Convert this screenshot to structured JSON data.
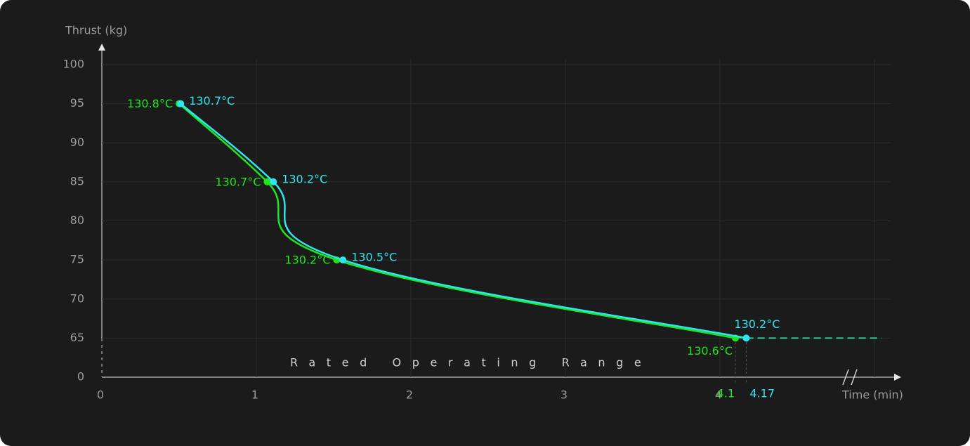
{
  "chart_data": {
    "type": "line",
    "title": "Thrust  (kg)",
    "x_label": "Time  (min)",
    "annotation": "Rated Operating Range",
    "xlim": [
      0,
      5
    ],
    "xticks": [
      0,
      1,
      2,
      3,
      4
    ],
    "ylim": [
      0,
      100
    ],
    "yticks": [
      0,
      65,
      70,
      75,
      80,
      85,
      90,
      95,
      100
    ],
    "grid": true,
    "series": [
      {
        "color": "#1fe51c",
        "x": [
          0.5,
          1.07,
          1.52,
          4.1
        ],
        "values": [
          95,
          85,
          75,
          65
        ],
        "labels": [
          "130.8°C",
          "130.7°C",
          "130.2°C",
          "130.6°C"
        ]
      },
      {
        "color": "#2ee6ee",
        "x": [
          0.51,
          1.11,
          1.56,
          4.17
        ],
        "values": [
          95,
          85,
          75,
          65
        ],
        "labels": [
          "130.7°C",
          "130.2°C",
          "130.5°C",
          "130.2°C"
        ]
      }
    ]
  }
}
